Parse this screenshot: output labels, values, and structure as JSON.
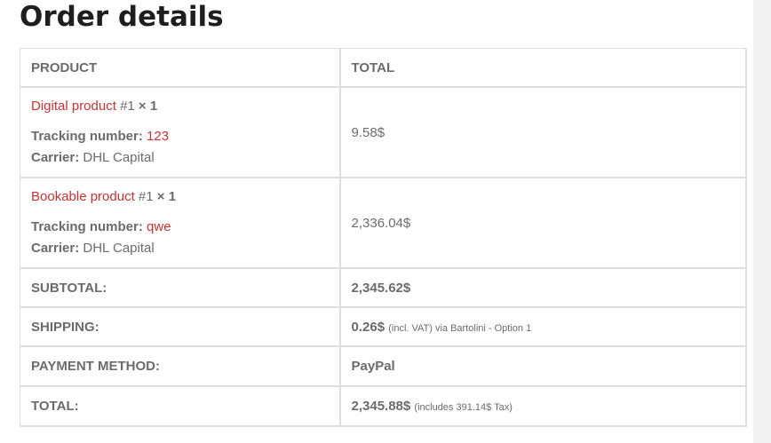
{
  "title": "Order details",
  "headers": {
    "product": "PRODUCT",
    "total": "TOTAL"
  },
  "items": [
    {
      "name": "Digital product",
      "suffix": "#1",
      "qty": "× 1",
      "tracking_label": "Tracking number:",
      "tracking_value": "123",
      "carrier_label": "Carrier:",
      "carrier_value": "DHL Capital",
      "total": "9.58$"
    },
    {
      "name": "Bookable product",
      "suffix": "#1",
      "qty": "× 1",
      "tracking_label": "Tracking number:",
      "tracking_value": "qwe",
      "carrier_label": "Carrier:",
      "carrier_value": "DHL Capital",
      "total": "2,336.04$"
    }
  ],
  "subtotal": {
    "label": "SUBTOTAL:",
    "value": "2,345.62$"
  },
  "shipping": {
    "label": "SHIPPING:",
    "value": "0.26$",
    "note": "(incl. VAT) via Bartolini - Option 1"
  },
  "payment": {
    "label": "PAYMENT METHOD:",
    "value": "PayPal"
  },
  "total": {
    "label": "TOTAL:",
    "value": "2,345.88$",
    "note": "(includes 391.14$  Tax)"
  }
}
